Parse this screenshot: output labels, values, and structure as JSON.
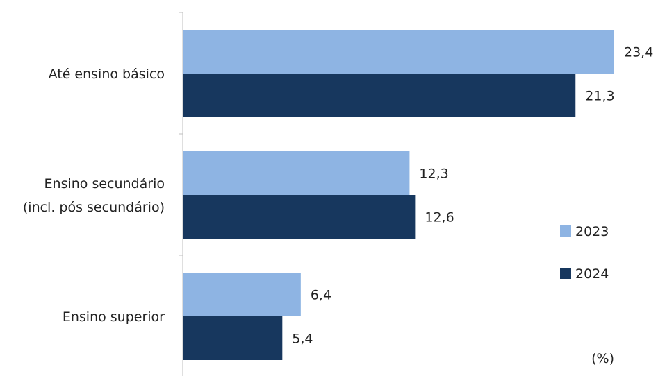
{
  "chart_data": {
    "type": "bar",
    "orientation": "horizontal",
    "categories": [
      [
        "Até ensino básico"
      ],
      [
        "Ensino secundário",
        "(incl. pós secundário)"
      ],
      [
        "Ensino superior"
      ]
    ],
    "series": [
      {
        "name": "2023",
        "values": [
          23.4,
          12.3,
          6.4
        ],
        "color": "#8eb4e3",
        "labels": [
          "23,4",
          "12,3",
          "6,4"
        ]
      },
      {
        "name": "2024",
        "values": [
          21.3,
          12.6,
          5.4
        ],
        "color": "#17375e",
        "labels": [
          "21,3",
          "12,6",
          "5,4"
        ]
      }
    ],
    "xlim": [
      0,
      23.4
    ],
    "unit": "(%)",
    "legend_position": "right",
    "grid": false
  }
}
